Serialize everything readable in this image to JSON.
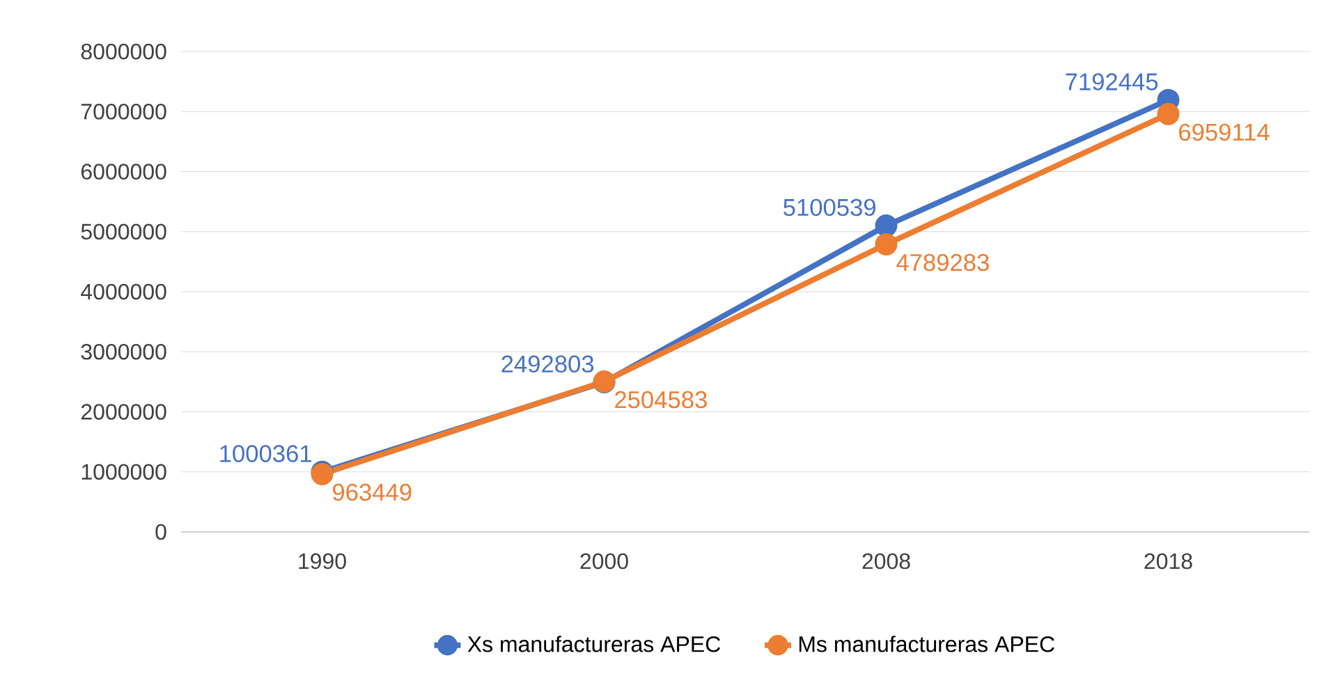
{
  "chart_data": {
    "type": "line",
    "categories": [
      "1990",
      "2000",
      "2008",
      "2018"
    ],
    "series": [
      {
        "name": "Xs manufactureras APEC",
        "color": "#4472c4",
        "values": [
          1000361,
          2492803,
          5100539,
          7192445
        ]
      },
      {
        "name": "Ms manufactureras APEC",
        "color": "#ed7d31",
        "values": [
          963449,
          2504583,
          4789283,
          6959114
        ]
      }
    ],
    "ylim": [
      0,
      8000000
    ],
    "yticks": [
      0,
      1000000,
      2000000,
      3000000,
      4000000,
      5000000,
      6000000,
      7000000,
      8000000
    ],
    "grid": "y",
    "legend": "bottom",
    "marker": "circle",
    "line_style": "solid",
    "data_labels": true
  }
}
